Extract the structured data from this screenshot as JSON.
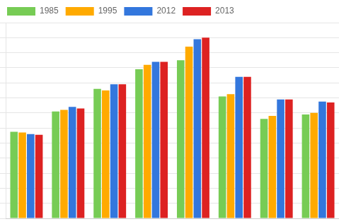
{
  "chart_data": {
    "type": "bar",
    "categories": [
      null,
      null,
      null,
      null,
      null,
      null,
      null,
      null
    ],
    "series": [
      {
        "name": "1985",
        "color": "#77cc55",
        "values": [
          1.15,
          1.42,
          1.72,
          1.98,
          2.1,
          1.62,
          1.32,
          1.38
        ]
      },
      {
        "name": "1995",
        "color": "#ffaa00",
        "values": [
          1.14,
          1.44,
          1.7,
          2.04,
          2.28,
          1.65,
          1.36,
          1.4
        ]
      },
      {
        "name": "2012",
        "color": "#3377dd",
        "values": [
          1.12,
          1.48,
          1.78,
          2.08,
          2.38,
          1.88,
          1.58,
          1.55
        ]
      },
      {
        "name": "2013",
        "color": "#dd2222",
        "values": [
          1.11,
          1.46,
          1.78,
          2.08,
          2.4,
          1.88,
          1.58,
          1.54
        ]
      }
    ],
    "ylim": [
      0,
      2.6
    ],
    "yticks": [
      0,
      0.2,
      0.4,
      0.6,
      0.8,
      1.0,
      1.2,
      1.4,
      1.6,
      1.8,
      2.0,
      2.2,
      2.4,
      2.6
    ],
    "grid": true,
    "legend": "upper left",
    "tick_labels": false
  }
}
